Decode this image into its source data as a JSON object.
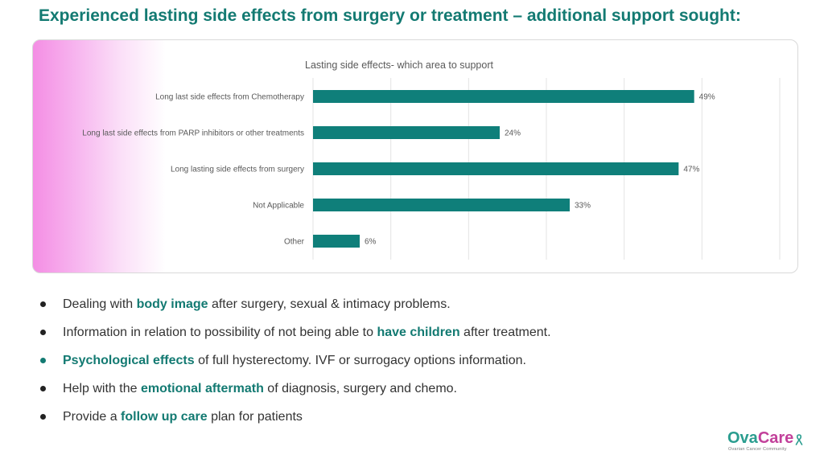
{
  "page": {
    "title": "Experienced lasting side effects from surgery or treatment – additional support sought:"
  },
  "chart_data": {
    "type": "bar",
    "orientation": "horizontal",
    "title": "Lasting side effects- which area to support",
    "categories": [
      "Long last side effects from Chemotherapy",
      "Long last side effects from PARP inhibitors or other treatments",
      "Long lasting side effects from surgery",
      "Not Applicable",
      "Other"
    ],
    "values": [
      49,
      24,
      47,
      33,
      6
    ],
    "value_labels": [
      "49%",
      "24%",
      "47%",
      "33%",
      "6%"
    ],
    "xlim": [
      0,
      60
    ],
    "grid": true,
    "bar_color": "#0f7f7a"
  },
  "bullets": [
    {
      "pre": "Dealing with ",
      "highlight": "body image",
      "post": " after surgery, sexual & intimacy problems."
    },
    {
      "pre": "Information in relation to possibility of not being able to ",
      "highlight": "have children",
      "post": " after treatment."
    },
    {
      "pre": "",
      "highlight": "Psychological effects",
      "post": " of full hysterectomy. IVF or surrogacy options information."
    },
    {
      "pre": "Help with the ",
      "highlight": "emotional aftermath",
      "post": " of diagnosis, surgery and chemo."
    },
    {
      "pre": "Provide a ",
      "highlight": "follow up care",
      "post": " plan for patients"
    }
  ],
  "logo": {
    "ova": "Ova",
    "care": "Care",
    "tagline": "Ovarian Cancer Community"
  },
  "colors": {
    "accent": "#137a72",
    "bar": "#0f7f7a",
    "logo_teal": "#2a9d8f",
    "logo_pink": "#c2409a"
  }
}
